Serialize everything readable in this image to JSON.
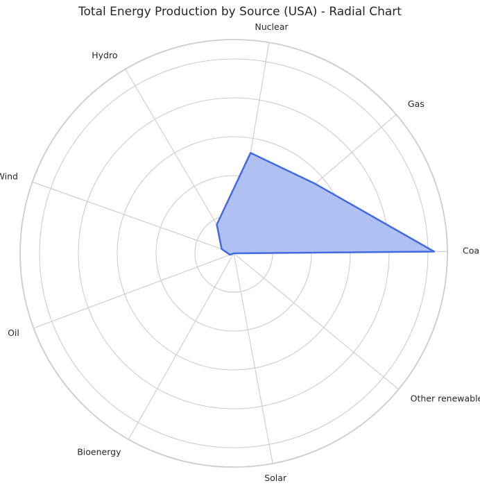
{
  "chart_data": {
    "type": "radar",
    "title": "Total Energy Production by Source (USA) - Radial Chart",
    "categories": [
      "Coal",
      "Gas",
      "Nuclear",
      "Hydro",
      "Wind",
      "Oil",
      "Bioenergy",
      "Solar",
      "Other renewables"
    ],
    "series": [
      {
        "values": [
          1032,
          551,
          524,
          172,
          66,
          21,
          0,
          0,
          0
        ]
      }
    ],
    "rlim": [
      0,
      1100
    ],
    "radial_gridlines": [
      200,
      400,
      600,
      800,
      1000
    ],
    "radial_tick_labels_visible": false,
    "grid": true,
    "colors": {
      "line": "#4169e1",
      "fill": "#b0c0f2",
      "grid": "#cccccc",
      "text": "#262626"
    }
  }
}
